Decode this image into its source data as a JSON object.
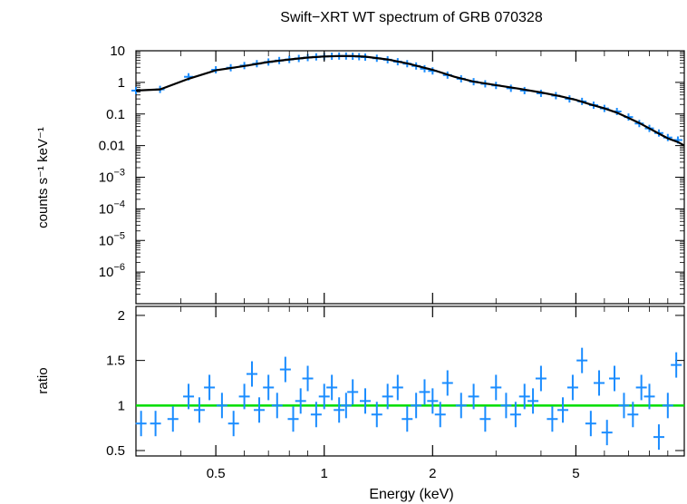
{
  "chart_data": [
    {
      "type": "scatter",
      "title": "Swift−XRT WT spectrum of GRB 070328",
      "ylabel": "counts s⁻¹ keV⁻¹",
      "xlabel": "",
      "x_scale": "log",
      "y_scale": "log",
      "xlim": [
        0.3,
        10
      ],
      "ylim": [
        1e-07,
        10
      ],
      "y_ticks": [
        {
          "value": 10,
          "label": "10"
        },
        {
          "value": 1,
          "label": "1"
        },
        {
          "value": 0.1,
          "label": "0.1"
        },
        {
          "value": 0.01,
          "label": "0.01"
        },
        {
          "value": 0.001,
          "base": "10",
          "exp": "−3"
        },
        {
          "value": 0.0001,
          "base": "10",
          "exp": "−4"
        },
        {
          "value": 1e-05,
          "base": "10",
          "exp": "−5"
        },
        {
          "value": 1e-06,
          "base": "10",
          "exp": "−6"
        }
      ],
      "series": [
        {
          "kind": "data",
          "color": "#1a8cff",
          "x": [
            0.3,
            0.35,
            0.42,
            0.5,
            0.55,
            0.6,
            0.65,
            0.7,
            0.75,
            0.8,
            0.85,
            0.9,
            0.95,
            1.0,
            1.05,
            1.1,
            1.15,
            1.2,
            1.25,
            1.3,
            1.4,
            1.5,
            1.6,
            1.7,
            1.8,
            1.9,
            2.0,
            2.2,
            2.4,
            2.6,
            2.8,
            3.0,
            3.3,
            3.6,
            4.0,
            4.4,
            4.8,
            5.2,
            5.6,
            6.0,
            6.5,
            7.0,
            7.5,
            8.0,
            8.5,
            9.0,
            9.6
          ],
          "y": [
            0.55,
            0.6,
            1.5,
            2.5,
            2.9,
            3.4,
            3.9,
            4.4,
            4.9,
            5.3,
            5.7,
            6.1,
            6.4,
            6.6,
            6.7,
            6.8,
            6.8,
            6.7,
            6.5,
            6.3,
            5.8,
            5.2,
            4.5,
            3.9,
            3.3,
            2.7,
            2.3,
            1.7,
            1.3,
            1.05,
            0.9,
            0.8,
            0.65,
            0.55,
            0.45,
            0.38,
            0.3,
            0.25,
            0.19,
            0.15,
            0.12,
            0.08,
            0.05,
            0.035,
            0.025,
            0.018,
            0.015
          ]
        },
        {
          "kind": "model",
          "color": "#000000",
          "x": [
            0.3,
            0.35,
            0.42,
            0.5,
            0.6,
            0.7,
            0.8,
            0.9,
            1.0,
            1.1,
            1.2,
            1.3,
            1.5,
            1.7,
            2.0,
            2.3,
            2.6,
            3.0,
            3.5,
            4.0,
            4.5,
            5.0,
            5.5,
            6.0,
            6.5,
            7.0,
            7.5,
            8.0,
            8.5,
            9.0,
            9.6,
            10.0
          ],
          "y": [
            0.55,
            0.6,
            1.3,
            2.4,
            3.3,
            4.4,
            5.3,
            6.1,
            6.6,
            6.8,
            6.8,
            6.5,
            5.3,
            4.0,
            2.5,
            1.5,
            1.05,
            0.82,
            0.62,
            0.48,
            0.37,
            0.28,
            0.2,
            0.15,
            0.11,
            0.075,
            0.052,
            0.035,
            0.024,
            0.017,
            0.013,
            0.01
          ]
        }
      ]
    },
    {
      "type": "scatter",
      "xlabel": "Energy (keV)",
      "ylabel": "ratio",
      "x_scale": "log",
      "xlim": [
        0.3,
        10
      ],
      "ylim": [
        0.44,
        2.1
      ],
      "x_ticks": [
        {
          "value": 0.5,
          "label": "0.5"
        },
        {
          "value": 1,
          "label": "1"
        },
        {
          "value": 2,
          "label": "2"
        },
        {
          "value": 5,
          "label": "5"
        }
      ],
      "y_ticks": [
        {
          "value": 2,
          "label": "2"
        },
        {
          "value": 1.5,
          "label": "1.5"
        },
        {
          "value": 1,
          "label": "1"
        },
        {
          "value": 0.5,
          "label": "0.5"
        }
      ],
      "reference_line": {
        "y": 1,
        "color": "#00dd00"
      },
      "series": [
        {
          "kind": "data",
          "color": "#1a8cff",
          "x": [
            0.31,
            0.34,
            0.38,
            0.42,
            0.45,
            0.48,
            0.52,
            0.56,
            0.6,
            0.63,
            0.66,
            0.7,
            0.74,
            0.78,
            0.82,
            0.86,
            0.9,
            0.95,
            1.0,
            1.05,
            1.1,
            1.15,
            1.2,
            1.3,
            1.4,
            1.5,
            1.6,
            1.7,
            1.8,
            1.9,
            2.0,
            2.1,
            2.2,
            2.4,
            2.6,
            2.8,
            3.0,
            3.2,
            3.4,
            3.6,
            3.8,
            4.0,
            4.3,
            4.6,
            4.9,
            5.2,
            5.5,
            5.8,
            6.1,
            6.4,
            6.8,
            7.2,
            7.6,
            8.0,
            8.5,
            9.0,
            9.5
          ],
          "y": [
            0.8,
            0.8,
            0.85,
            1.1,
            0.95,
            1.2,
            1.0,
            0.8,
            1.1,
            1.35,
            0.95,
            1.2,
            1.0,
            1.4,
            0.85,
            1.05,
            1.3,
            0.9,
            1.1,
            1.2,
            0.95,
            1.0,
            1.15,
            1.05,
            0.9,
            1.1,
            1.2,
            0.85,
            1.0,
            1.15,
            1.05,
            0.9,
            1.25,
            1.0,
            1.1,
            0.85,
            1.2,
            1.0,
            0.9,
            1.1,
            1.05,
            1.3,
            0.85,
            0.95,
            1.2,
            1.5,
            0.8,
            1.25,
            0.7,
            1.3,
            1.0,
            0.9,
            1.2,
            1.1,
            0.65,
            1.0,
            1.45
          ]
        }
      ]
    }
  ]
}
